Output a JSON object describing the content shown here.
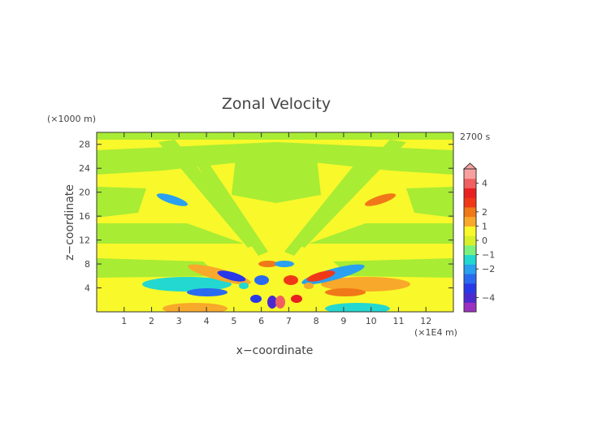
{
  "chart_data": {
    "type": "heatmap",
    "title": "Zonal Velocity",
    "xlabel": "x−coordinate",
    "ylabel": "z−coordinate",
    "x_unit": "(×1E4 m)",
    "y_unit": "(×1000 m)",
    "time_label": "2700 s",
    "xlim": [
      0,
      13
    ],
    "ylim": [
      0,
      30
    ],
    "x_ticks": [
      "1",
      "2",
      "3",
      "4",
      "5",
      "6",
      "7",
      "8",
      "9",
      "10",
      "11",
      "12"
    ],
    "y_ticks": [
      "4",
      "8",
      "12",
      "16",
      "20",
      "24",
      "28"
    ],
    "colorbar": {
      "range": [
        -5,
        5
      ],
      "tick_labels": [
        "4",
        "2",
        "1",
        "0",
        "−1",
        "−2",
        "−4"
      ],
      "tick_values": [
        4,
        2,
        1,
        0,
        -1,
        -2,
        -4
      ],
      "colors": [
        "#9b30c0",
        "#4a2ad0",
        "#2838e8",
        "#2a6af0",
        "#29a0f0",
        "#22d8d0",
        "#7cf27e",
        "#d8f02a",
        "#f8f82a",
        "#f8a82a",
        "#f07818",
        "#f03818",
        "#e82020",
        "#f06060",
        "#f8a0a0"
      ],
      "extend_top": true
    },
    "pattern": "Symmetric wave pattern about x = 6.5: alternating positive (yellow/orange) and negative (green/blue) velocity rays fanning upward from a source near x = 6.5, z = 0; strongest values (about ±4) near the source at low altitude."
  }
}
